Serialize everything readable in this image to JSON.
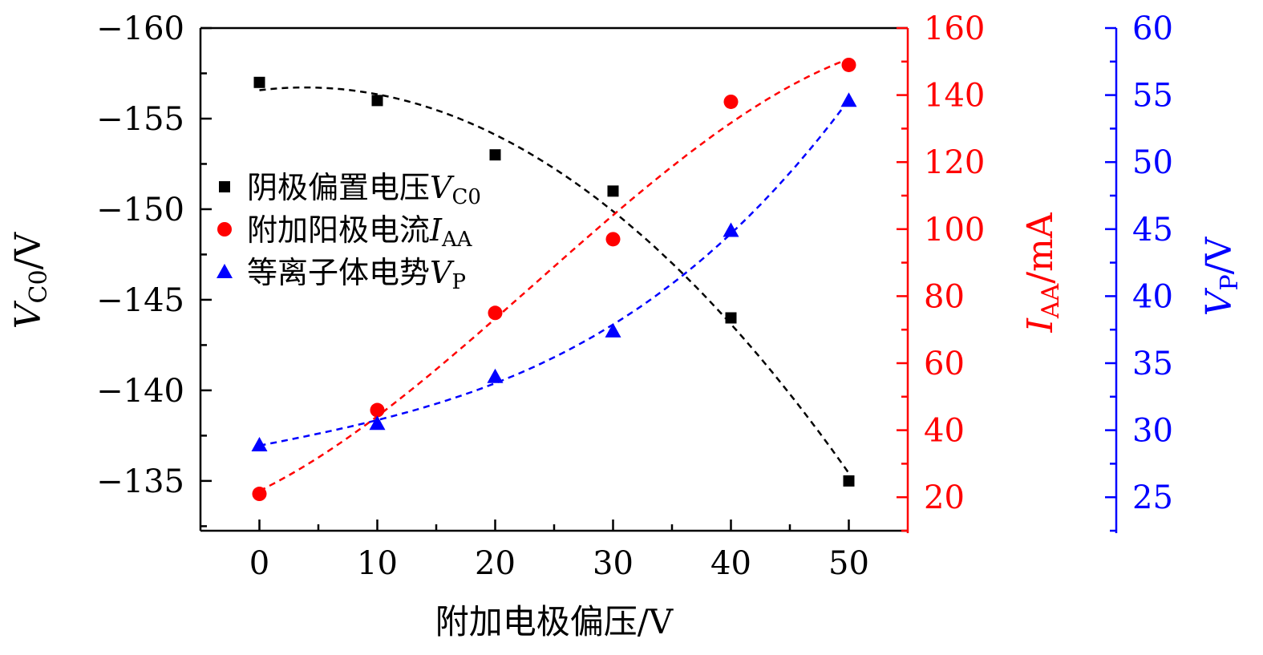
{
  "chart_data": {
    "type": "scatter",
    "title": "",
    "xlabel": "附加电极偏压/V",
    "xlim": [
      -5,
      55
    ],
    "xticks": [
      0,
      10,
      20,
      30,
      40,
      50
    ],
    "x": [
      0,
      10,
      20,
      30,
      40,
      50
    ],
    "axes": {
      "left": {
        "label_var": "V",
        "label_sub": "C0",
        "label_unit": "/V",
        "range": [
          -132.25,
          -160
        ],
        "ticks": [
          -160,
          -155,
          -150,
          -145,
          -140,
          -135
        ],
        "minor_step": 2.5,
        "color": "#000000"
      },
      "right1": {
        "label_var": "I",
        "label_sub": "AA",
        "label_unit": "/mA",
        "range": [
          10,
          160
        ],
        "ticks": [
          160,
          140,
          120,
          100,
          80,
          60,
          40,
          20
        ],
        "minor_step": 10,
        "color": "#ff0000"
      },
      "right2": {
        "label_var": "V",
        "label_sub": "P",
        "label_unit": "/V",
        "range": [
          22.5,
          60
        ],
        "ticks": [
          60,
          55,
          50,
          45,
          40,
          35,
          30,
          25
        ],
        "minor_step": 2.5,
        "color": "#0000ff"
      }
    },
    "series": [
      {
        "name_text": "阴极偏置电压",
        "name_var": "V",
        "name_sub": "C0",
        "axis": "left",
        "marker": "square",
        "color": "#000000",
        "values": [
          -157,
          -156,
          -153,
          -151,
          -144,
          -135
        ],
        "fit": "dashed"
      },
      {
        "name_text": "附加阳极电流",
        "name_var": "I",
        "name_sub": "AA",
        "axis": "right1",
        "marker": "circle",
        "color": "#ff0000",
        "values": [
          21,
          46,
          75,
          97,
          138,
          149
        ],
        "fit": "dashed"
      },
      {
        "name_text": "等离子体电势",
        "name_var": "V",
        "name_sub": "P",
        "axis": "right2",
        "marker": "triangle",
        "color": "#0000ff",
        "values": [
          28.9,
          30.5,
          34,
          37.4,
          44.9,
          54.6
        ],
        "fit": "dashed"
      }
    ],
    "legend_position": "left-middle",
    "grid": false
  }
}
